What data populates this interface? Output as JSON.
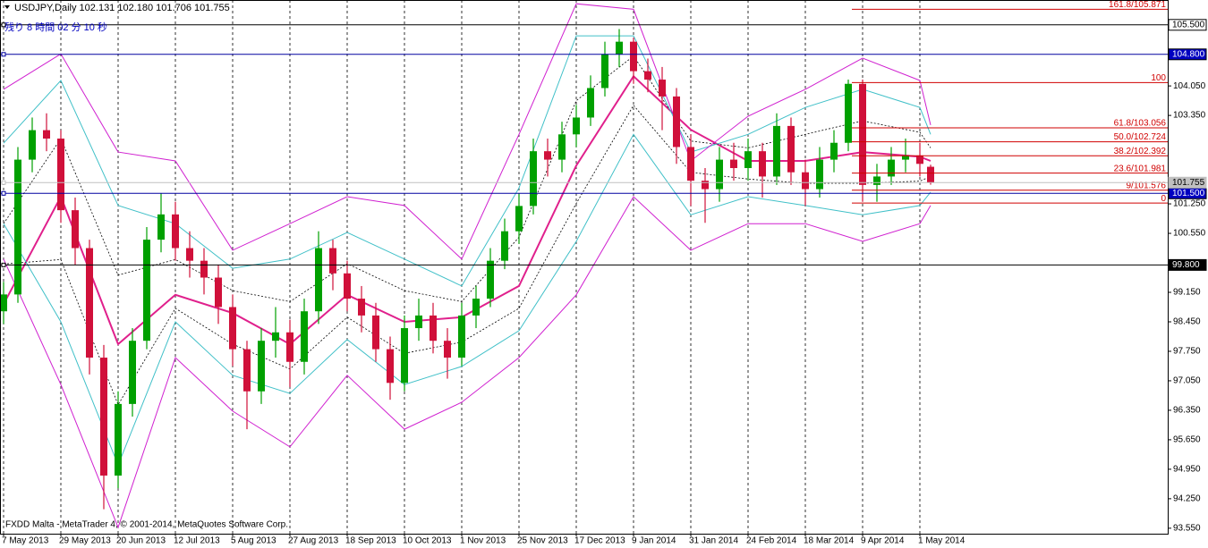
{
  "chart_data": {
    "type": "candlestick",
    "title": "USDJPY,Daily  102.131 102.180 101.706 101.755",
    "subtitle": "残り 8 時間 02 分 10 秒",
    "footer": "FXDD Malta - MetaTrader 4, © 2001-2014, MetaQuotes Software Corp.",
    "x": [
      0,
      4,
      8,
      12,
      16,
      20,
      24,
      28,
      32,
      36,
      40,
      44,
      48,
      52,
      56,
      60,
      64,
      68,
      72,
      76,
      80,
      84,
      88,
      92,
      96,
      100,
      104,
      108,
      112,
      116,
      120,
      124,
      128,
      132,
      136,
      140,
      144,
      148,
      152,
      156,
      160,
      164,
      168,
      172,
      176,
      180,
      184,
      188,
      192,
      196,
      200,
      204,
      208,
      212,
      216,
      220,
      224,
      228,
      232,
      236,
      240,
      244,
      248,
      252,
      256,
      259
    ],
    "open": [
      98.7,
      99.1,
      102.3,
      103.0,
      102.8,
      101.1,
      100.2,
      97.6,
      94.8,
      96.5,
      98.0,
      100.4,
      101.0,
      100.2,
      99.9,
      99.5,
      98.8,
      97.8,
      96.8,
      98.0,
      98.2,
      97.5,
      98.7,
      100.2,
      99.6,
      99.0,
      98.6,
      97.8,
      97.0,
      98.3,
      98.6,
      98.0,
      97.6,
      98.6,
      99.0,
      99.9,
      100.6,
      101.2,
      102.5,
      102.3,
      102.9,
      103.3,
      104.0,
      104.8,
      105.1,
      104.4,
      104.2,
      103.8,
      102.6,
      101.8,
      101.6,
      102.3,
      102.1,
      102.5,
      101.9,
      103.1,
      102.0,
      101.6,
      102.3,
      102.7,
      104.1,
      101.7,
      101.9,
      102.3,
      102.4,
      102.131
    ],
    "high": [
      99.4,
      102.6,
      103.3,
      103.4,
      103.0,
      101.4,
      100.4,
      97.9,
      96.8,
      98.3,
      100.7,
      101.5,
      101.3,
      100.6,
      100.2,
      99.8,
      99.1,
      98.0,
      98.3,
      98.8,
      98.5,
      99.0,
      100.6,
      100.4,
      99.9,
      99.3,
      98.9,
      98.1,
      98.6,
      99.0,
      98.9,
      98.3,
      98.9,
      99.3,
      100.2,
      100.9,
      101.5,
      102.8,
      102.8,
      103.2,
      103.6,
      104.3,
      105.1,
      105.4,
      105.2,
      104.7,
      104.5,
      104.0,
      102.9,
      102.1,
      102.6,
      102.7,
      102.8,
      102.7,
      103.4,
      103.3,
      102.3,
      102.6,
      103.0,
      104.2,
      104.2,
      102.2,
      102.6,
      102.8,
      102.7,
      102.18
    ],
    "low": [
      98.4,
      98.9,
      102.0,
      102.5,
      100.8,
      99.8,
      97.2,
      94.0,
      94.5,
      96.2,
      97.8,
      100.1,
      99.9,
      99.5,
      99.1,
      98.4,
      97.4,
      95.9,
      96.5,
      97.6,
      96.9,
      97.2,
      98.4,
      99.2,
      98.7,
      98.2,
      97.5,
      96.6,
      96.8,
      98.0,
      97.7,
      97.1,
      97.4,
      98.3,
      98.8,
      99.7,
      100.3,
      101.0,
      101.9,
      102.0,
      102.6,
      103.1,
      103.8,
      104.5,
      104.1,
      103.9,
      103.0,
      102.2,
      101.2,
      100.8,
      101.3,
      101.8,
      101.8,
      101.4,
      101.7,
      101.7,
      101.2,
      101.4,
      102.0,
      102.5,
      101.3,
      101.3,
      101.7,
      102.0,
      101.9,
      101.706
    ],
    "close": [
      99.1,
      102.3,
      103.0,
      102.8,
      101.1,
      100.2,
      97.6,
      94.8,
      96.5,
      98.0,
      100.4,
      101.0,
      100.2,
      99.9,
      99.5,
      98.8,
      97.8,
      96.8,
      98.0,
      98.2,
      97.5,
      98.7,
      100.2,
      99.6,
      99.0,
      98.6,
      97.8,
      97.0,
      98.3,
      98.6,
      98.0,
      97.6,
      98.6,
      99.0,
      99.9,
      100.6,
      101.2,
      102.5,
      102.3,
      102.9,
      103.3,
      104.0,
      104.8,
      105.1,
      104.4,
      104.2,
      103.8,
      102.6,
      101.8,
      101.6,
      102.3,
      102.1,
      102.5,
      101.9,
      103.1,
      102.0,
      101.6,
      102.3,
      102.7,
      104.1,
      101.7,
      101.9,
      102.3,
      102.4,
      102.2,
      101.755
    ],
    "up_color": "#00a000",
    "down_color": "#d0103a",
    "overlays": {
      "x": [
        0,
        16,
        32,
        48,
        64,
        80,
        96,
        112,
        128,
        144,
        160,
        176,
        192,
        208,
        224,
        240,
        256,
        259
      ],
      "lines": [
        {
          "color": "#e0208c",
          "width": 2,
          "dash": "none",
          "values": [
            98.87,
            101.42,
            97.92,
            99.09,
            98.66,
            97.92,
            99.09,
            98.45,
            98.56,
            99.3,
            102.16,
            104.28,
            103.01,
            102.27,
            102.27,
            102.48,
            102.37,
            102.27
          ]
        },
        {
          "color": "#000000",
          "width": 0.8,
          "dash": "2,2",
          "values": [
            100.78,
            102.8,
            99.56,
            99.93,
            99.19,
            98.93,
            99.83,
            99.19,
            98.93,
            100.46,
            103.7,
            104.76,
            102.74,
            102.58,
            102.9,
            103.22,
            102.95,
            102.58
          ]
        },
        {
          "color": "#000000",
          "width": 0.8,
          "dash": "2,2",
          "values": [
            99.82,
            99.93,
            96.48,
            98.77,
            97.92,
            97.33,
            98.56,
            97.7,
            97.97,
            98.77,
            101.26,
            103.59,
            102.0,
            101.84,
            101.74,
            101.74,
            101.79,
            101.9
          ]
        },
        {
          "color": "#40c0c8",
          "width": 1,
          "dash": "none",
          "values": [
            102.69,
            104.18,
            101.21,
            100.78,
            99.72,
            99.94,
            100.57,
            99.94,
            99.3,
            101.63,
            105.24,
            105.24,
            102.48,
            102.9,
            103.54,
            103.97,
            103.54,
            102.9
          ]
        },
        {
          "color": "#40c0c8",
          "width": 1,
          "dash": "none",
          "values": [
            100.78,
            98.45,
            95.05,
            98.45,
            97.18,
            96.75,
            98.03,
            96.96,
            97.39,
            98.24,
            100.36,
            102.9,
            100.99,
            101.42,
            101.21,
            100.99,
            101.21,
            101.53
          ]
        },
        {
          "color": "#d020d0",
          "width": 1,
          "dash": "none",
          "values": [
            103.97,
            104.81,
            102.48,
            102.27,
            100.15,
            100.78,
            101.42,
            101.21,
            99.94,
            102.9,
            106.0,
            105.87,
            102.27,
            103.33,
            103.97,
            104.71,
            104.18,
            103.12
          ]
        },
        {
          "color": "#d020d0",
          "width": 1,
          "dash": "none",
          "values": [
            99.94,
            96.96,
            93.57,
            97.6,
            96.33,
            95.48,
            97.18,
            95.9,
            96.54,
            97.6,
            99.09,
            101.42,
            100.15,
            100.78,
            100.78,
            100.36,
            100.78,
            101.21
          ]
        }
      ]
    },
    "levels": [
      {
        "value": 105.5,
        "label": "105.500",
        "color": "#000000",
        "label_fill": "#ffffff",
        "label_color": "#000000"
      },
      {
        "value": 104.8,
        "label": "104.800",
        "color": "#0000a0",
        "label_fill": "#0000c0",
        "label_color": "#ffffff"
      },
      {
        "value": 101.5,
        "label": "101.500",
        "color": "#0000a0",
        "label_fill": "#0000c0",
        "label_color": "#ffffff"
      },
      {
        "value": 99.8,
        "label": "99.800",
        "color": "#000000",
        "label_fill": "#000000",
        "label_color": "#ffffff"
      },
      {
        "value": 101.755,
        "label": "101.755",
        "color": "#c0c0c0",
        "label_fill": "#c0c0c0",
        "label_color": "#000000"
      }
    ],
    "fibo": {
      "x_start": 237,
      "color": "#d00000",
      "levels": [
        {
          "value": 105.871,
          "label": "161.8/105.871"
        },
        {
          "value": 104.13,
          "label": "100"
        },
        {
          "value": 103.056,
          "label": "61.8/103.056"
        },
        {
          "value": 102.724,
          "label": "50.0/102.724"
        },
        {
          "value": 102.392,
          "label": "38.2/102.392"
        },
        {
          "value": 101.981,
          "label": "23.6/101.981"
        },
        {
          "value": 101.576,
          "label": "9/101.576"
        },
        {
          "value": 101.27,
          "label": "0"
        }
      ]
    },
    "xlim": [
      -1,
      325.25
    ],
    "ylim": [
      93.42,
      106.09
    ],
    "xticks": [
      {
        "value": 0,
        "label": "7 May 2013"
      },
      {
        "value": 16,
        "label": "29 May 2013"
      },
      {
        "value": 32,
        "label": "20 Jun 2013"
      },
      {
        "value": 48,
        "label": "12 Jul 2013"
      },
      {
        "value": 64,
        "label": "5 Aug 2013"
      },
      {
        "value": 80,
        "label": "27 Aug 2013"
      },
      {
        "value": 96,
        "label": "18 Sep 2013"
      },
      {
        "value": 112,
        "label": "10 Oct 2013"
      },
      {
        "value": 128,
        "label": "1 Nov 2013"
      },
      {
        "value": 144,
        "label": "25 Nov 2013"
      },
      {
        "value": 160,
        "label": "17 Dec 2013"
      },
      {
        "value": 176,
        "label": "9 Jan 2014"
      },
      {
        "value": 192,
        "label": "31 Jan 2014"
      },
      {
        "value": 208,
        "label": "24 Feb 2014"
      },
      {
        "value": 224,
        "label": "18 Mar 2014"
      },
      {
        "value": 240,
        "label": "9 Apr 2014"
      },
      {
        "value": 256,
        "label": "1 May 2014"
      }
    ],
    "yticks": [
      {
        "value": 104.05,
        "label": "104.050"
      },
      {
        "value": 103.35,
        "label": "103.350"
      },
      {
        "value": 101.25,
        "label": "101.250"
      },
      {
        "value": 100.55,
        "label": "100.550"
      },
      {
        "value": 99.15,
        "label": "99.150"
      },
      {
        "value": 98.45,
        "label": "98.450"
      },
      {
        "value": 97.75,
        "label": "97.750"
      },
      {
        "value": 97.05,
        "label": "97.050"
      },
      {
        "value": 96.35,
        "label": "96.350"
      },
      {
        "value": 95.65,
        "label": "95.650"
      },
      {
        "value": 94.95,
        "label": "94.950"
      },
      {
        "value": 94.25,
        "label": "94.250"
      },
      {
        "value": 93.55,
        "label": "93.550"
      }
    ],
    "grid": true
  }
}
